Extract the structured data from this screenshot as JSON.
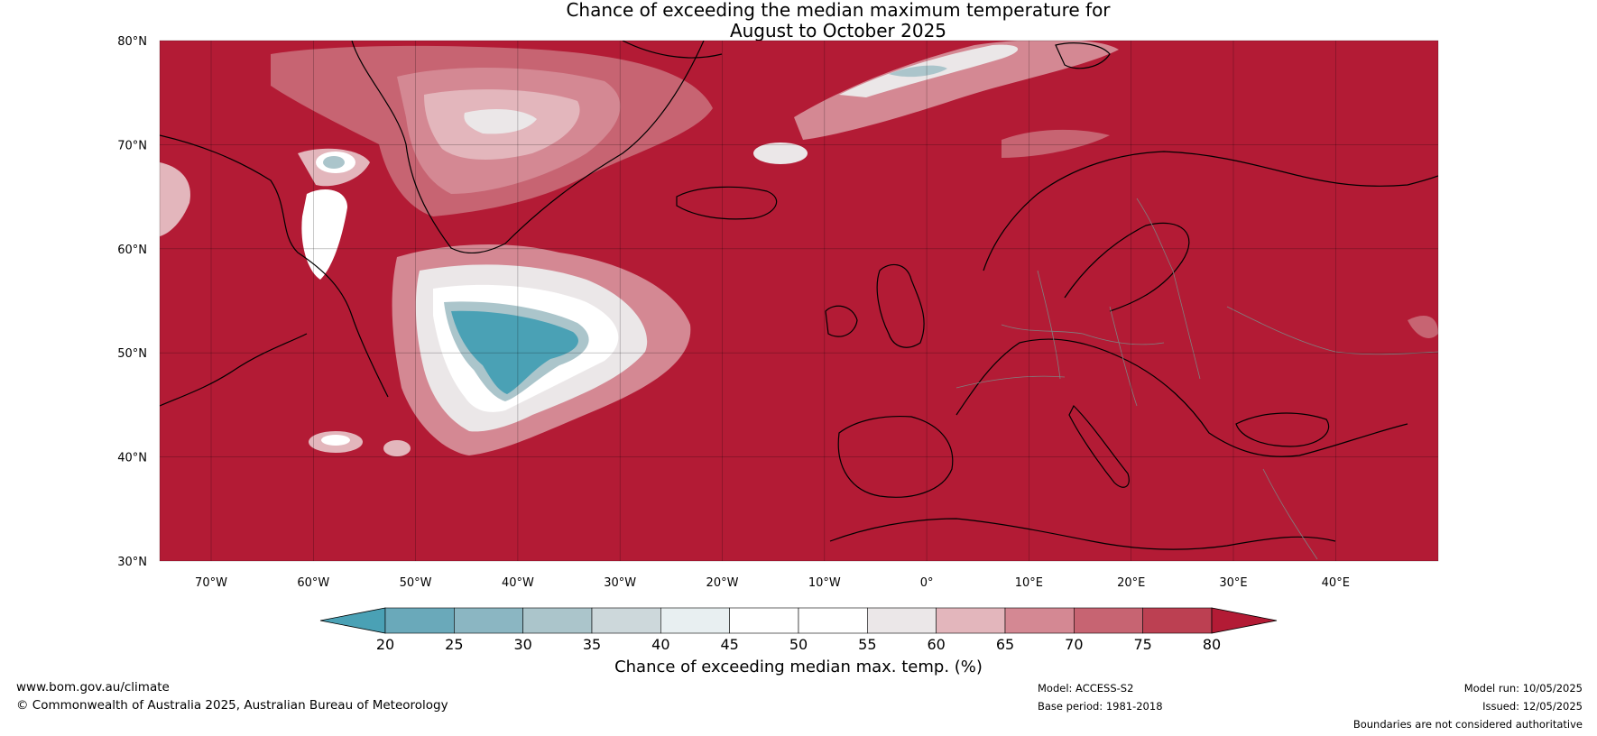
{
  "title": {
    "line1": "Chance of exceeding the median maximum temperature for",
    "line2": "August to October 2025"
  },
  "map": {
    "lat_labels": [
      "80°N",
      "70°N",
      "60°N",
      "50°N",
      "40°N",
      "30°N"
    ],
    "lon_labels": [
      "70°W",
      "60°W",
      "50°W",
      "40°W",
      "30°W",
      "20°W",
      "10°W",
      "0°",
      "10°E",
      "20°E",
      "30°E",
      "40°E"
    ],
    "background_color": "#b31b35"
  },
  "colorbar": {
    "ticks": [
      "20",
      "25",
      "30",
      "35",
      "40",
      "45",
      "50",
      "55",
      "60",
      "65",
      "70",
      "75",
      "80"
    ],
    "colors": [
      "#4aa1b5",
      "#6aa9ba",
      "#8bb6c2",
      "#abc5cb",
      "#cdd8db",
      "#e8eff1",
      "#ffffff",
      "#ffffff",
      "#ebe7e8",
      "#e3b6bc",
      "#d48893",
      "#c76472",
      "#bc4052",
      "#b31b35"
    ],
    "label": "Chance of exceeding median max. temp. (%)"
  },
  "footer": {
    "website": "www.bom.gov.au/climate",
    "copyright": "© Commonwealth of Australia 2025, Australian Bureau of Meteorology",
    "model": "Model: ACCESS-S2",
    "base_period": "Base period: 1981-2018",
    "model_run": "Model run: 10/05/2025",
    "issued": "Issued: 12/05/2025",
    "disclaimer": "Boundaries are not considered authoritative"
  }
}
